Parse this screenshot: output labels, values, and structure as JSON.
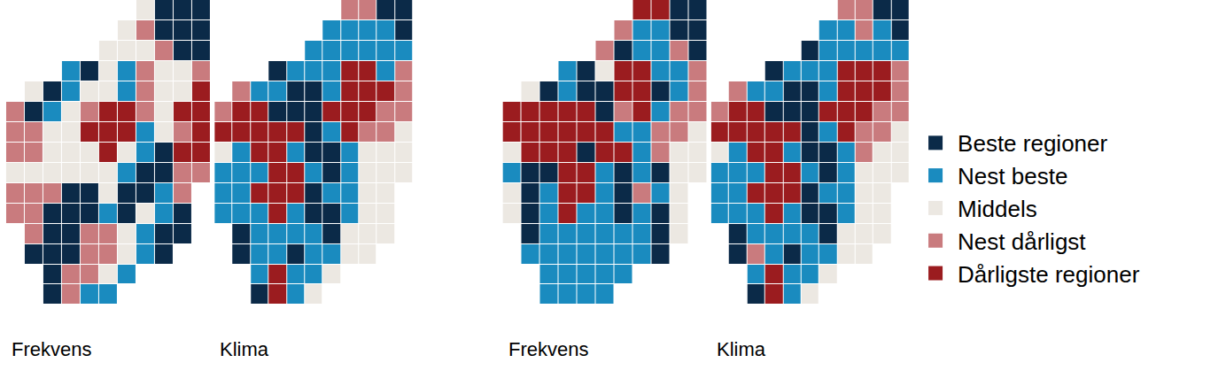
{
  "chart_data": {
    "type": "heatmap",
    "tick_labels": false,
    "legend": "right",
    "categories": [
      "Beste regioner",
      "Nest beste",
      "Middels",
      "Nest dårligst",
      "Dårligste regioner"
    ],
    "colors": [
      "#0b2a48",
      "#1a8bbf",
      "#ece8e2",
      "#c97b7e",
      "#9b1c1f"
    ],
    "maps": [
      {
        "title": "Frekvens",
        "cells": [
          [
            null,
            null,
            null,
            null,
            null,
            null,
            null,
            2,
            0,
            0,
            0
          ],
          [
            null,
            null,
            null,
            null,
            null,
            null,
            2,
            3,
            0,
            0,
            0
          ],
          [
            null,
            null,
            null,
            null,
            null,
            2,
            2,
            2,
            3,
            0,
            0
          ],
          [
            null,
            null,
            null,
            1,
            0,
            2,
            1,
            3,
            2,
            2,
            3
          ],
          [
            null,
            2,
            0,
            1,
            2,
            2,
            1,
            3,
            2,
            2,
            4
          ],
          [
            3,
            0,
            1,
            2,
            3,
            4,
            4,
            3,
            2,
            4,
            4
          ],
          [
            3,
            3,
            2,
            2,
            4,
            4,
            4,
            1,
            2,
            3,
            4
          ],
          [
            3,
            3,
            2,
            2,
            2,
            4,
            2,
            1,
            0,
            4,
            4
          ],
          [
            2,
            2,
            2,
            2,
            2,
            2,
            1,
            0,
            0,
            3,
            3
          ],
          [
            3,
            3,
            3,
            0,
            0,
            2,
            0,
            0,
            1,
            3,
            null
          ],
          [
            3,
            3,
            0,
            0,
            0,
            1,
            0,
            2,
            1,
            0,
            null
          ],
          [
            null,
            3,
            0,
            0,
            3,
            3,
            2,
            1,
            0,
            0,
            null
          ],
          [
            null,
            0,
            0,
            0,
            3,
            3,
            2,
            1,
            0,
            null,
            null
          ],
          [
            null,
            null,
            0,
            3,
            3,
            2,
            1,
            null,
            null,
            null,
            null
          ],
          [
            null,
            null,
            0,
            3,
            1,
            1,
            null,
            null,
            null,
            null,
            null
          ]
        ]
      },
      {
        "title": "Klima",
        "cells": [
          [
            null,
            null,
            null,
            null,
            null,
            null,
            null,
            3,
            3,
            0,
            0
          ],
          [
            null,
            null,
            null,
            null,
            null,
            null,
            1,
            1,
            1,
            1,
            0
          ],
          [
            null,
            null,
            null,
            null,
            null,
            1,
            1,
            1,
            1,
            1,
            1
          ],
          [
            null,
            null,
            null,
            0,
            1,
            1,
            1,
            4,
            4,
            1,
            3
          ],
          [
            null,
            3,
            1,
            1,
            0,
            0,
            1,
            4,
            4,
            4,
            3
          ],
          [
            3,
            4,
            4,
            0,
            0,
            0,
            4,
            4,
            4,
            3,
            3
          ],
          [
            4,
            4,
            4,
            4,
            4,
            0,
            1,
            4,
            3,
            3,
            2
          ],
          [
            2,
            1,
            4,
            4,
            1,
            0,
            0,
            1,
            2,
            2,
            2
          ],
          [
            1,
            1,
            1,
            4,
            4,
            1,
            0,
            1,
            2,
            2,
            2
          ],
          [
            1,
            1,
            4,
            4,
            4,
            0,
            1,
            1,
            2,
            2,
            null
          ],
          [
            1,
            1,
            1,
            4,
            1,
            0,
            0,
            1,
            2,
            2,
            null
          ],
          [
            null,
            0,
            1,
            1,
            1,
            1,
            0,
            2,
            2,
            2,
            null
          ],
          [
            null,
            0,
            1,
            1,
            0,
            1,
            1,
            2,
            2,
            null,
            null
          ],
          [
            null,
            null,
            1,
            4,
            1,
            1,
            2,
            null,
            null,
            null,
            null
          ],
          [
            null,
            null,
            0,
            4,
            1,
            2,
            null,
            null,
            null,
            null,
            null
          ]
        ]
      },
      {
        "title": "Frekvens",
        "cells": [
          [
            null,
            null,
            null,
            null,
            null,
            null,
            null,
            4,
            4,
            0,
            0
          ],
          [
            null,
            null,
            null,
            null,
            null,
            null,
            3,
            1,
            1,
            0,
            0
          ],
          [
            null,
            null,
            null,
            null,
            null,
            3,
            0,
            1,
            1,
            3,
            0
          ],
          [
            null,
            null,
            null,
            1,
            0,
            2,
            4,
            4,
            1,
            1,
            3
          ],
          [
            null,
            2,
            0,
            1,
            0,
            0,
            4,
            4,
            0,
            1,
            3
          ],
          [
            4,
            4,
            4,
            4,
            4,
            0,
            3,
            4,
            1,
            3,
            3
          ],
          [
            4,
            4,
            4,
            4,
            4,
            4,
            1,
            1,
            3,
            3,
            2
          ],
          [
            2,
            4,
            4,
            4,
            0,
            4,
            4,
            1,
            3,
            2,
            2
          ],
          [
            1,
            0,
            0,
            4,
            4,
            1,
            0,
            1,
            0,
            2,
            2
          ],
          [
            2,
            0,
            1,
            4,
            4,
            1,
            0,
            3,
            1,
            2,
            null
          ],
          [
            2,
            0,
            1,
            4,
            1,
            1,
            0,
            1,
            0,
            2,
            null
          ],
          [
            null,
            0,
            1,
            1,
            1,
            1,
            1,
            1,
            0,
            2,
            null
          ],
          [
            null,
            1,
            1,
            1,
            1,
            1,
            1,
            1,
            0,
            null,
            null
          ],
          [
            null,
            null,
            1,
            1,
            1,
            1,
            1,
            null,
            null,
            null,
            null
          ],
          [
            null,
            null,
            1,
            1,
            1,
            1,
            null,
            null,
            null,
            null,
            null
          ]
        ]
      },
      {
        "title": "Klima",
        "cells": [
          [
            null,
            null,
            null,
            null,
            null,
            null,
            null,
            3,
            3,
            0,
            0
          ],
          [
            null,
            null,
            null,
            null,
            null,
            null,
            1,
            1,
            3,
            1,
            0
          ],
          [
            null,
            null,
            null,
            null,
            null,
            0,
            1,
            1,
            1,
            1,
            1
          ],
          [
            null,
            null,
            null,
            0,
            1,
            1,
            1,
            4,
            4,
            4,
            3
          ],
          [
            null,
            3,
            1,
            1,
            0,
            0,
            1,
            4,
            4,
            4,
            3
          ],
          [
            3,
            4,
            4,
            0,
            0,
            0,
            4,
            4,
            4,
            3,
            3
          ],
          [
            4,
            4,
            4,
            4,
            4,
            0,
            1,
            4,
            3,
            3,
            2
          ],
          [
            2,
            1,
            4,
            4,
            1,
            0,
            0,
            1,
            3,
            2,
            2
          ],
          [
            1,
            1,
            1,
            4,
            4,
            1,
            0,
            1,
            2,
            2,
            2
          ],
          [
            1,
            1,
            4,
            4,
            4,
            0,
            1,
            1,
            2,
            2,
            null
          ],
          [
            1,
            1,
            1,
            4,
            1,
            0,
            0,
            1,
            2,
            2,
            null
          ],
          [
            null,
            0,
            1,
            1,
            1,
            1,
            0,
            2,
            2,
            2,
            null
          ],
          [
            null,
            0,
            3,
            1,
            0,
            1,
            1,
            2,
            2,
            null,
            null
          ],
          [
            null,
            null,
            1,
            4,
            1,
            1,
            2,
            null,
            null,
            null,
            null
          ],
          [
            null,
            null,
            0,
            4,
            1,
            2,
            null,
            null,
            null,
            null,
            null
          ]
        ]
      }
    ]
  }
}
